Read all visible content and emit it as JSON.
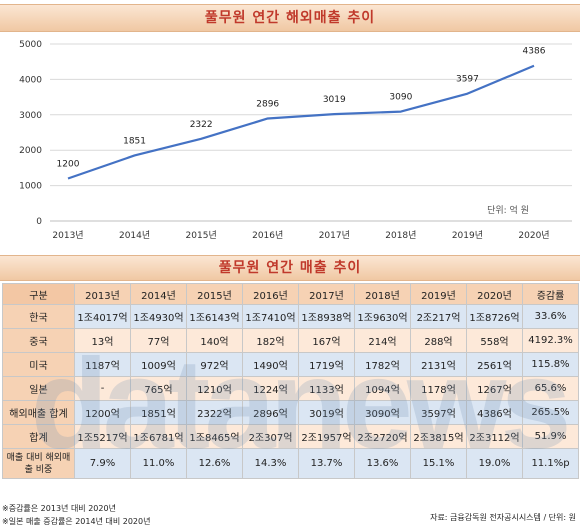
{
  "chart_title": "풀무원 연간 해외매출 추이",
  "table_title": "풀무원 연간 매출 추이",
  "chart_data": {
    "type": "line",
    "x": [
      "2013년",
      "2014년",
      "2015년",
      "2016년",
      "2017년",
      "2018년",
      "2019년",
      "2020년"
    ],
    "values": [
      1200,
      1851,
      2322,
      2896,
      3019,
      3090,
      3597,
      4386
    ],
    "data_labels": [
      "1200",
      "1851",
      "2322",
      "2896",
      "3019",
      "3090",
      "3597",
      "4386"
    ],
    "yticks": [
      "0",
      "1000",
      "2000",
      "3000",
      "4000",
      "5000"
    ],
    "ylim": [
      0,
      5000
    ],
    "unit_note": "단위: 억 원",
    "grid": true,
    "line_color": "#4472c4"
  },
  "table": {
    "headers": [
      "구분",
      "2013년",
      "2014년",
      "2015년",
      "2016년",
      "2017년",
      "2018년",
      "2019년",
      "2020년",
      "증감률"
    ],
    "rows": [
      {
        "label": "한국",
        "cells": [
          "1조4017억",
          "1조4930억",
          "1조6143억",
          "1조7410억",
          "1조8938억",
          "1조9630억",
          "2조217억",
          "1조8726억",
          "33.6%"
        ]
      },
      {
        "label": "중국",
        "cells": [
          "13억",
          "77억",
          "140억",
          "182억",
          "167억",
          "214억",
          "288억",
          "558억",
          "4192.3%"
        ]
      },
      {
        "label": "미국",
        "cells": [
          "1187억",
          "1009억",
          "972억",
          "1490억",
          "1719억",
          "1782억",
          "2131억",
          "2561억",
          "115.8%"
        ]
      },
      {
        "label": "일본",
        "cells": [
          "-",
          "765억",
          "1210억",
          "1224억",
          "1133억",
          "1094억",
          "1178억",
          "1267억",
          "65.6%"
        ]
      },
      {
        "label": "해외매출 합계",
        "cells": [
          "1200억",
          "1851억",
          "2322억",
          "2896억",
          "3019억",
          "3090억",
          "3597억",
          "4386억",
          "265.5%"
        ]
      },
      {
        "label": "합계",
        "cells": [
          "1조5217억",
          "1조6781억",
          "1조8465억",
          "2조307억",
          "2조1957억",
          "2조2720억",
          "2조3815억",
          "2조3112억",
          "51.9%"
        ]
      },
      {
        "label": "매출 대비 해외매출 비중",
        "cells": [
          "7.9%",
          "11.0%",
          "12.6%",
          "14.3%",
          "13.7%",
          "13.6%",
          "15.1%",
          "19.0%",
          "11.1%p"
        ]
      }
    ]
  },
  "notes": [
    "※증감률은 2013년 대비 2020년",
    "※일본 매출 증감률은 2014년 대비 2020년"
  ],
  "source": "자료: 금융감독원 전자공시시스템 / 단위: 원",
  "watermark": "datanews"
}
